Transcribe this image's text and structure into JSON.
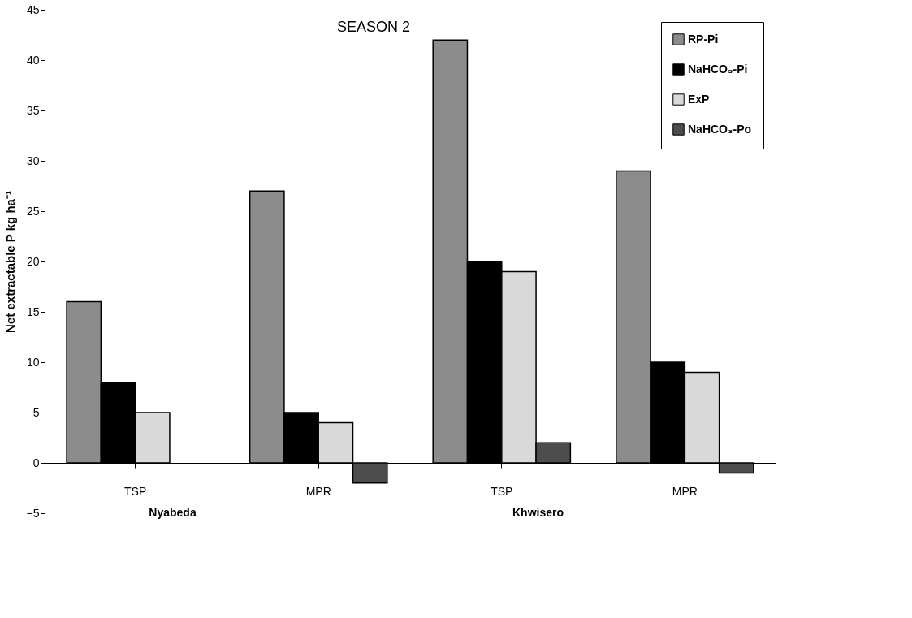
{
  "chart_data": {
    "type": "bar",
    "title": "SEASON 2",
    "ylabel": "Net extractable P kg ha⁻¹",
    "categories": [
      "TSP",
      "MPR",
      "TSP",
      "MPR"
    ],
    "series": [
      {
        "name": "RP-Pi",
        "color": "#8c8c8c",
        "values": [
          16,
          27,
          42,
          29
        ]
      },
      {
        "name": "NaHCO₃-Pi",
        "color": "#000000",
        "values": [
          8,
          5,
          20,
          10
        ]
      },
      {
        "name": "ExP",
        "color": "#d9d9d9",
        "values": [
          5,
          4,
          19,
          9
        ]
      },
      {
        "name": "NaHCO₃-Po",
        "color": "#4d4d4d",
        "values": [
          null,
          -2,
          2,
          -1
        ]
      }
    ],
    "annotations": [
      "Nyabeda",
      "Khwisero"
    ],
    "ylim": [
      -5,
      45
    ],
    "yticks": [
      -5,
      0,
      5,
      10,
      15,
      20,
      25,
      30,
      35,
      40,
      45
    ],
    "grid": false,
    "legend": "top right"
  }
}
